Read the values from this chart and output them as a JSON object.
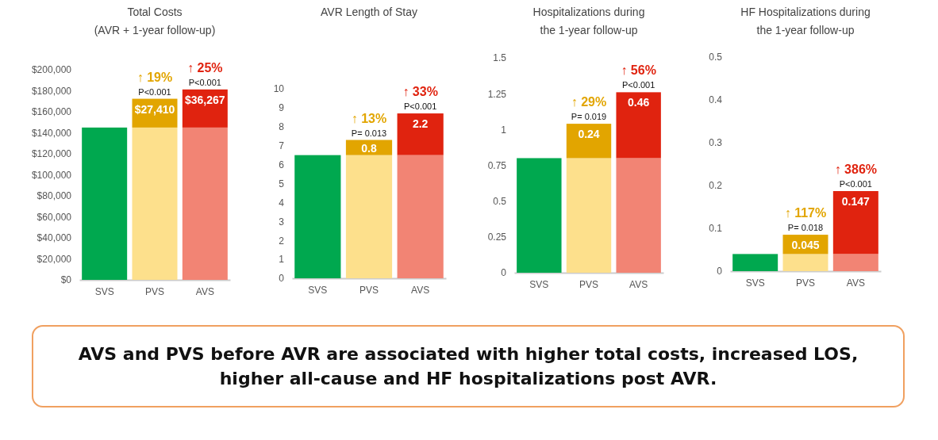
{
  "chart_data": [
    {
      "type": "bar",
      "title": "Total Costs",
      "subtitle": "(AVR + 1-year follow-up)",
      "categories": [
        "SVS",
        "PVS",
        "AVS"
      ],
      "stacked": true,
      "series": [
        {
          "values": [
            145000,
            145000,
            145000
          ],
          "colors": [
            "#00a84f",
            "#fde08c",
            "#f28474"
          ]
        },
        {
          "values": [
            null,
            27410,
            36267
          ],
          "colors": [
            null,
            "#e2a500",
            "#e0230f"
          ],
          "value_labels": [
            null,
            "$27,410",
            "$36,267"
          ]
        }
      ],
      "ylim": [
        0,
        200000
      ],
      "yticks": [
        {
          "value": 0,
          "label": "$0"
        },
        {
          "value": 20000,
          "label": "$20,000"
        },
        {
          "value": 40000,
          "label": "$40,000"
        },
        {
          "value": 60000,
          "label": "$60,000"
        },
        {
          "value": 80000,
          "label": "$80,000"
        },
        {
          "value": 100000,
          "label": "$100,000"
        },
        {
          "value": 120000,
          "label": "$120,000"
        },
        {
          "value": 140000,
          "label": "$140,000"
        },
        {
          "value": 160000,
          "label": "$160,000"
        },
        {
          "value": 180000,
          "label": "$180,000"
        },
        {
          "value": 200000,
          "label": "$200,000"
        }
      ],
      "annotations": [
        {
          "text": "↑ 19%",
          "x": "PVS",
          "y": 172410
        },
        {
          "text": "P<0.001",
          "x": "PVS",
          "y": 172410
        },
        {
          "text": "↑ 25%",
          "x": "AVS",
          "y": 181267
        },
        {
          "text": "P<0.001",
          "x": "AVS",
          "y": 181267
        }
      ]
    },
    {
      "type": "bar",
      "title": "AVR Length of Stay",
      "categories": [
        "SVS",
        "PVS",
        "AVS"
      ],
      "stacked": true,
      "series": [
        {
          "values": [
            6.5,
            6.5,
            6.5
          ],
          "colors": [
            "#00a84f",
            "#fde08c",
            "#f28474"
          ]
        },
        {
          "values": [
            null,
            0.8,
            2.2
          ],
          "colors": [
            null,
            "#e2a500",
            "#e0230f"
          ],
          "value_labels": [
            null,
            "0.8",
            "2.2"
          ]
        }
      ],
      "ylim": [
        0,
        10
      ],
      "yticks": [
        0,
        1,
        2,
        3,
        4,
        5,
        6,
        7,
        8,
        9,
        10
      ],
      "annotations": [
        {
          "text": "↑ 13%",
          "x": "PVS",
          "y": 7.3
        },
        {
          "text": "P= 0.013",
          "x": "PVS",
          "y": 7.3
        },
        {
          "text": "↑ 33%",
          "x": "AVS",
          "y": 8.7
        },
        {
          "text": "P<0.001",
          "x": "AVS",
          "y": 8.7
        }
      ]
    },
    {
      "type": "bar",
      "title": "Hospitalizations during",
      "subtitle": "the 1-year follow-up",
      "categories": [
        "SVS",
        "PVS",
        "AVS"
      ],
      "stacked": true,
      "series": [
        {
          "values": [
            0.8,
            0.8,
            0.8
          ],
          "colors": [
            "#00a84f",
            "#fde08c",
            "#f28474"
          ]
        },
        {
          "values": [
            null,
            0.24,
            0.46
          ],
          "colors": [
            null,
            "#e2a500",
            "#e0230f"
          ],
          "value_labels": [
            null,
            "0.24",
            "0.46"
          ]
        }
      ],
      "ylim": [
        0,
        1.5
      ],
      "yticks": [
        0,
        0.25,
        0.5,
        0.75,
        1,
        1.25,
        1.5
      ],
      "annotations": [
        {
          "text": "↑ 29%",
          "x": "PVS",
          "y": 1.04
        },
        {
          "text": "P= 0.019",
          "x": "PVS",
          "y": 1.04
        },
        {
          "text": "↑ 56%",
          "x": "AVS",
          "y": 1.26
        },
        {
          "text": "P<0.001",
          "x": "AVS",
          "y": 1.26
        }
      ]
    },
    {
      "type": "bar",
      "title": "HF Hospitalizations during",
      "subtitle": "the 1-year follow-up",
      "categories": [
        "SVS",
        "PVS",
        "AVS"
      ],
      "stacked": true,
      "series": [
        {
          "values": [
            0.04,
            0.04,
            0.04
          ],
          "colors": [
            "#00a84f",
            "#fde08c",
            "#f28474"
          ]
        },
        {
          "values": [
            null,
            0.045,
            0.147
          ],
          "colors": [
            null,
            "#e2a500",
            "#e0230f"
          ],
          "value_labels": [
            null,
            "0.045",
            "0.147"
          ]
        }
      ],
      "ylim": [
        0,
        0.5
      ],
      "yticks": [
        0,
        0.1,
        0.2,
        0.3,
        0.4,
        0.5
      ],
      "annotations": [
        {
          "text": "↑ 117%",
          "x": "PVS",
          "y": 0.085
        },
        {
          "text": "P= 0.018",
          "x": "PVS",
          "y": 0.085
        },
        {
          "text": "↑ 386%",
          "x": "AVS",
          "y": 0.187
        },
        {
          "text": "P<0.001",
          "x": "AVS",
          "y": 0.187
        }
      ]
    },
    {
      "type": "other",
      "annotations": [
        "AVS and PVS before AVR are associated with higher total costs, increased LOS, higher all-cause and HF hospitalizations post AVR."
      ]
    }
  ]
}
